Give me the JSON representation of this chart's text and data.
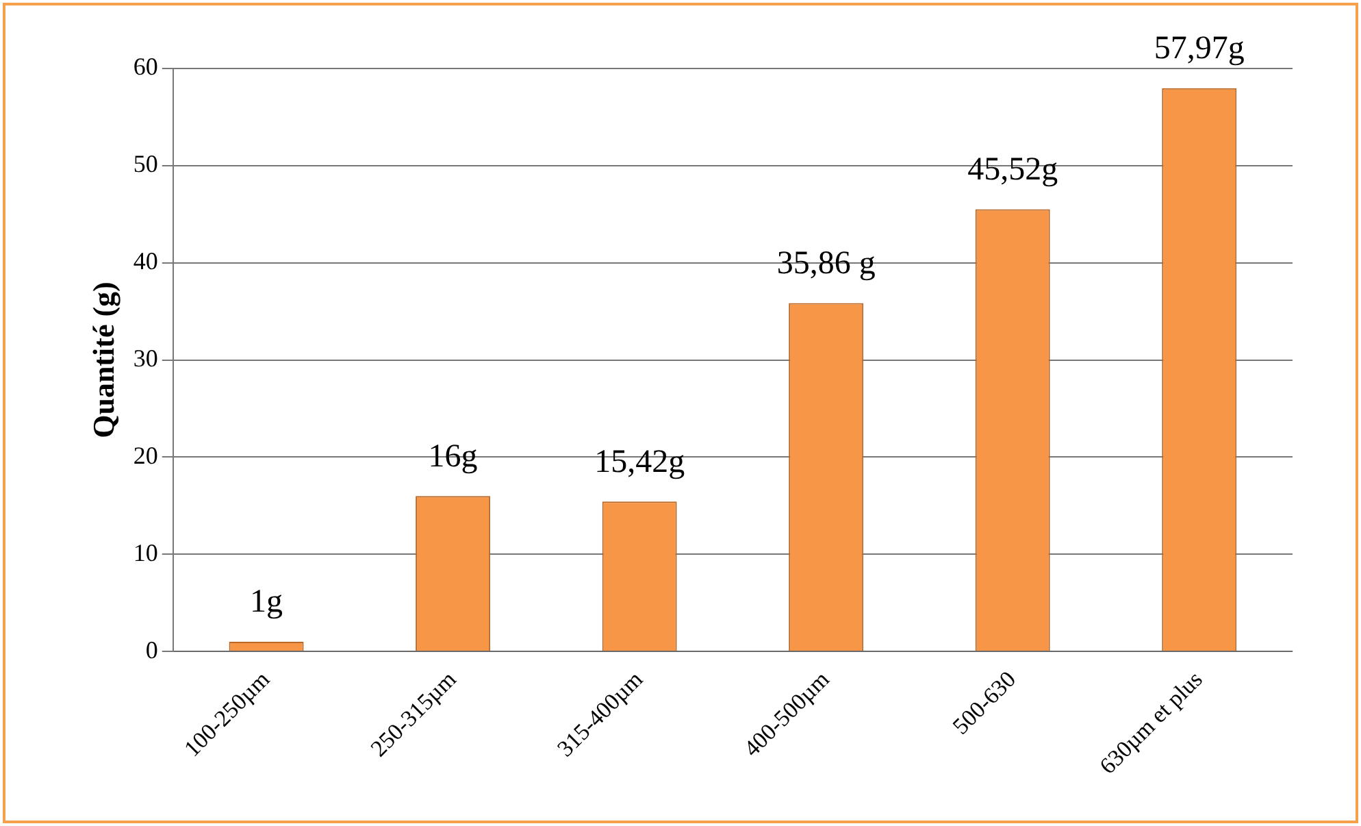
{
  "chart_data": {
    "type": "bar",
    "ylabel": "Quantité (g)",
    "categories": [
      "100-250µm",
      "250-315µm",
      "315-400µm",
      "400-500µm",
      "500-630",
      "630µm et plus"
    ],
    "values": [
      1,
      16,
      15.42,
      35.86,
      45.52,
      57.97
    ],
    "value_labels": [
      "1g",
      "16g",
      "15,42g",
      "35,86 g",
      "45,52g",
      "57,97g"
    ],
    "color": "#f79646",
    "ylim": [
      0,
      60
    ],
    "yticks": [
      0,
      10,
      20,
      30,
      40,
      50,
      60
    ],
    "grid": "y",
    "legend": false
  }
}
